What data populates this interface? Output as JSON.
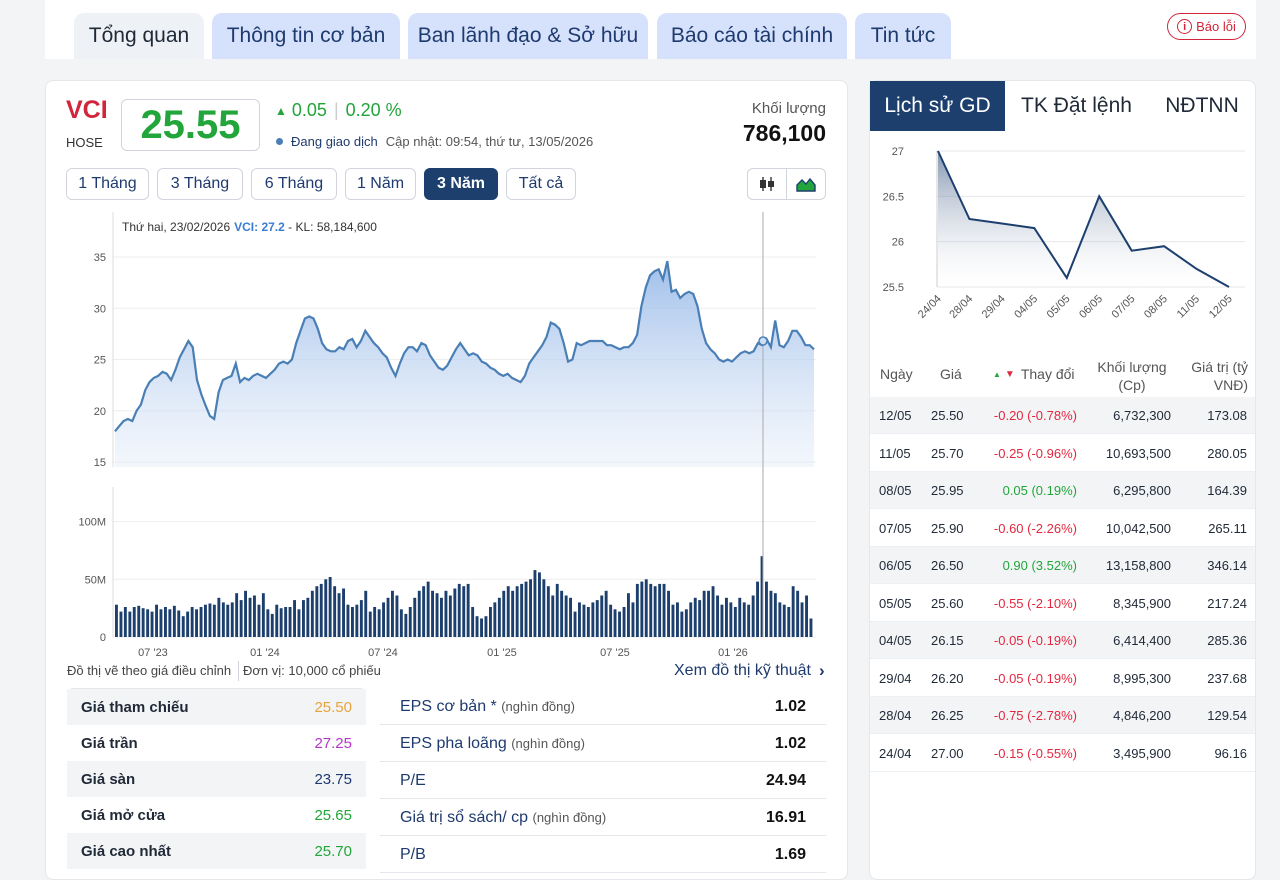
{
  "tabs": [
    {
      "label": "Tổng quan",
      "active": true
    },
    {
      "label": "Thông tin cơ bản",
      "active": false
    },
    {
      "label": "Ban lãnh đạo & Sở hữu",
      "active": false
    },
    {
      "label": "Báo cáo tài chính",
      "active": false
    },
    {
      "label": "Tin tức",
      "active": false
    }
  ],
  "report_button": "Báo lỗi",
  "quote": {
    "symbol": "VCI",
    "exchange": "HOSE",
    "price": "25.55",
    "change": "0.05",
    "change_pct": "0.20 %",
    "status": "Đang giao dịch",
    "updated": "Cập nhật: 09:54, thứ tư, 13/05/2026",
    "volume_label": "Khối lượng",
    "volume": "786,100"
  },
  "ranges": [
    "1 Tháng",
    "3 Tháng",
    "6 Tháng",
    "1 Năm",
    "3 Năm",
    "Tất cả"
  ],
  "active_range": "3 Năm",
  "chart_icons": [
    "candlestick-icon",
    "area-chart-icon"
  ],
  "tooltip": {
    "date": "Thứ hai, 23/02/2026",
    "series": "VCI: 27.2",
    "volume": " - KL: 58,184,600"
  },
  "chart_data": [
    {
      "type": "area",
      "title": "",
      "ylim": [
        15,
        35
      ],
      "yticks": [
        "35",
        "30",
        "25",
        "20",
        "15"
      ],
      "xticks": [
        "07 '23",
        "01 '24",
        "07 '24",
        "01 '25",
        "07 '25",
        "01 '26"
      ],
      "values": [
        18,
        18.5,
        19,
        19.2,
        19,
        20,
        20.6,
        22,
        22.8,
        23.2,
        23.4,
        23.8,
        23.6,
        23,
        24,
        25.2,
        26,
        26.8,
        26.2,
        23,
        21.6,
        20.5,
        19.5,
        19.2,
        21.8,
        23,
        23.2,
        23.4,
        24.6,
        22.8,
        23.2,
        23,
        23.4,
        23.6,
        23.4,
        23.2,
        23.6,
        24,
        24.6,
        24.8,
        24.6,
        25,
        26.6,
        27.8,
        29,
        29.2,
        29,
        28,
        26.6,
        26,
        25.8,
        25.8,
        26.2,
        26,
        26.8,
        27,
        26.2,
        26.8,
        27.8,
        27.2,
        26.6,
        26.2,
        25.6,
        25.2,
        24.2,
        23.4,
        24.6,
        25.6,
        26.2,
        26.2,
        25.8,
        26.6,
        26.4,
        25.4,
        24.8,
        24.2,
        24,
        24.4,
        25.2,
        26,
        26.6,
        26,
        25.4,
        25.6,
        25.4,
        24.8,
        24.6,
        24.2,
        24,
        23.6,
        23.4,
        23.6,
        23.2,
        23,
        22.8,
        23.4,
        24.6,
        25.2,
        25.8,
        26.4,
        27.2,
        28.6,
        28.4,
        28,
        26.6,
        24.8,
        25,
        26.6,
        26.4,
        26.6,
        26.8,
        26.8,
        26.8,
        26.8,
        26.4,
        26.4,
        26.2,
        26,
        26.2,
        26.2,
        26.6,
        27.4,
        30.2,
        32,
        33.2,
        33.6,
        33.8,
        32.8,
        34.6,
        31.6,
        31.8,
        31,
        31.4,
        31.6,
        31.4,
        30.2,
        28,
        26.6,
        26,
        25.6,
        25,
        24.8,
        25,
        24.8,
        25.2,
        25.6,
        25.8,
        25.6,
        25.8,
        26.6,
        26.4,
        27,
        26.2,
        28.8,
        26.4,
        26.2,
        26.8,
        27.8,
        27.8,
        27.2,
        26.4,
        26.4,
        26
      ],
      "unit_note": "Đồ thị vẽ theo giá điều chỉnh"
    },
    {
      "type": "bar",
      "ylim": [
        0,
        130
      ],
      "yticks": [
        "100M",
        "50M",
        "0"
      ],
      "values": [
        28,
        22,
        26,
        22,
        26,
        27,
        25,
        24,
        22,
        28,
        24,
        26,
        24,
        27,
        23,
        18,
        22,
        26,
        24,
        26,
        28,
        29,
        28,
        34,
        30,
        28,
        30,
        38,
        32,
        40,
        34,
        36,
        28,
        38,
        24,
        20,
        28,
        25,
        26,
        26,
        32,
        24,
        32,
        34,
        40,
        44,
        46,
        50,
        52,
        44,
        38,
        42,
        28,
        26,
        28,
        32,
        40,
        22,
        26,
        24,
        30,
        34,
        40,
        36,
        24,
        20,
        26,
        34,
        40,
        44,
        48,
        40,
        38,
        34,
        40,
        36,
        42,
        46,
        44,
        46,
        26,
        18,
        16,
        18,
        26,
        30,
        34,
        40,
        44,
        40,
        44,
        46,
        48,
        50,
        58,
        56,
        50,
        44,
        36,
        46,
        40,
        36,
        34,
        22,
        30,
        28,
        26,
        30,
        32,
        36,
        40,
        28,
        24,
        22,
        26,
        38,
        30,
        46,
        48,
        50,
        46,
        44,
        46,
        46,
        40,
        28,
        30,
        22,
        24,
        30,
        34,
        32,
        40,
        40,
        44,
        36,
        28,
        34,
        30,
        26,
        34,
        30,
        28,
        36,
        48,
        70,
        48,
        40,
        38,
        30,
        28,
        26,
        44,
        40,
        30,
        36,
        16
      ],
      "unit_note": "Đơn vị: 10,000 cổ phiếu"
    },
    {
      "type": "area",
      "ylim": [
        25.5,
        27
      ],
      "yticks": [
        "27",
        "26.5",
        "26",
        "25.5"
      ],
      "categories": [
        "24/04",
        "28/04",
        "29/04",
        "04/05",
        "05/05",
        "06/05",
        "07/05",
        "08/05",
        "11/05",
        "12/05"
      ],
      "values": [
        27.0,
        26.25,
        26.2,
        26.15,
        25.6,
        26.5,
        25.9,
        25.95,
        25.7,
        25.5
      ]
    }
  ],
  "chart_footer": {
    "adjusted_note": "Đồ thị vẽ theo giá điều chỉnh",
    "unit_note": "Đơn vị: 10,000 cổ phiếu",
    "technical_link": "Xem đồ thị kỹ thuật"
  },
  "stats": [
    {
      "label": "Giá tham chiếu",
      "value": "25.50",
      "color": "#e8a33d"
    },
    {
      "label": "Giá trần",
      "value": "27.25",
      "color": "#b336c9"
    },
    {
      "label": "Giá sàn",
      "value": "23.75",
      "color": "#1e3a6e"
    },
    {
      "label": "Giá mở cửa",
      "value": "25.65",
      "color": "#22a53a"
    },
    {
      "label": "Giá cao nhất",
      "value": "25.70",
      "color": "#22a53a"
    }
  ],
  "financials": [
    {
      "label": "EPS cơ bản *",
      "unit": "(nghìn đồng)",
      "value": "1.02"
    },
    {
      "label": "EPS pha loãng",
      "unit": "(nghìn đồng)",
      "value": "1.02"
    },
    {
      "label": "P/E",
      "unit": "",
      "value": "24.94"
    },
    {
      "label": "Giá trị sổ sách/ cp",
      "unit": "(nghìn đồng)",
      "value": "16.91"
    },
    {
      "label": "P/B",
      "unit": "",
      "value": "1.69"
    }
  ],
  "right_tabs": [
    "Lịch sử GD",
    "TK Đặt lệnh",
    "NĐTNN"
  ],
  "history_headers": {
    "date": "Ngày",
    "price": "Giá",
    "change": "Thay đổi",
    "volume": "Khối lượng",
    "volume_unit": "(Cp)",
    "value": "Giá trị (tỷ",
    "value_unit": "VNĐ)"
  },
  "history_rows": [
    {
      "date": "12/05",
      "price": "25.50",
      "change": "-0.20 (-0.78%)",
      "volume": "6,732,300",
      "value": "173.08",
      "dir": "down"
    },
    {
      "date": "11/05",
      "price": "25.70",
      "change": "-0.25 (-0.96%)",
      "volume": "10,693,500",
      "value": "280.05",
      "dir": "down"
    },
    {
      "date": "08/05",
      "price": "25.95",
      "change": "0.05 (0.19%)",
      "volume": "6,295,800",
      "value": "164.39",
      "dir": "up"
    },
    {
      "date": "07/05",
      "price": "25.90",
      "change": "-0.60 (-2.26%)",
      "volume": "10,042,500",
      "value": "265.11",
      "dir": "down"
    },
    {
      "date": "06/05",
      "price": "26.50",
      "change": "0.90 (3.52%)",
      "volume": "13,158,800",
      "value": "346.14",
      "dir": "up"
    },
    {
      "date": "05/05",
      "price": "25.60",
      "change": "-0.55 (-2.10%)",
      "volume": "8,345,900",
      "value": "217.24",
      "dir": "down"
    },
    {
      "date": "04/05",
      "price": "26.15",
      "change": "-0.05 (-0.19%)",
      "volume": "6,414,400",
      "value": "285.36",
      "dir": "down"
    },
    {
      "date": "29/04",
      "price": "26.20",
      "change": "-0.05 (-0.19%)",
      "volume": "8,995,300",
      "value": "237.68",
      "dir": "down"
    },
    {
      "date": "28/04",
      "price": "26.25",
      "change": "-0.75 (-2.78%)",
      "volume": "4,846,200",
      "value": "129.54",
      "dir": "down"
    },
    {
      "date": "24/04",
      "price": "27.00",
      "change": "-0.15 (-0.55%)",
      "volume": "3,495,900",
      "value": "96.16",
      "dir": "down"
    }
  ],
  "colors": {
    "up": "#22a53a",
    "down": "#e2283f",
    "accent": "#1c3f6e",
    "line": "#4a7fb5"
  }
}
